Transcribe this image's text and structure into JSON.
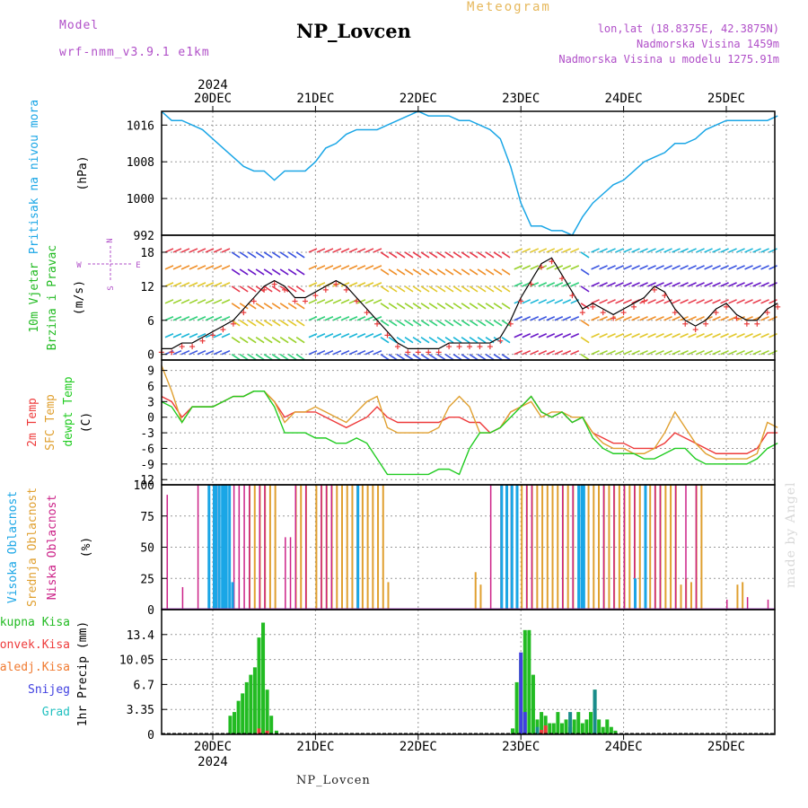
{
  "header": {
    "model_label": "Model",
    "model_name": "wrf-nmm_v3.9.1 e1km",
    "station": "NP_Lovcen",
    "meteogram_label": "Meteogram",
    "coords": "lon,lat (18.8375E, 42.3875N)",
    "elevation": "Nadmorska Visina 1459m",
    "model_elevation": "Nadmorska Visina u modelu 1275.91m"
  },
  "footer": {
    "station": "NP_Lovcen",
    "watermark": "made by Angel"
  },
  "colors": {
    "pressure": "#1aa6e6",
    "wind_label": "#22bb22",
    "temp2m": "#ee3b3b",
    "sfc_temp": "#e0a030",
    "dewpoint": "#22cc22",
    "high_cloud": "#1aa6e6",
    "mid_cloud": "#e0a030",
    "low_cloud": "#cc2288",
    "total_precip": "#22bb22",
    "convective": "#ee3b3b",
    "freezing": "#f07a30",
    "snow": "#4040e0",
    "hail": "#20c0c0",
    "direction_axis": "#b04fc8"
  },
  "chart_data": [
    {
      "type": "line",
      "panel": "pressure",
      "title": "",
      "ylabel": "Pritisak na nivou mora",
      "yunit": "(hPa)",
      "yticks": [
        992,
        1000,
        1008,
        1016
      ],
      "ylim": [
        992,
        1019
      ],
      "x_dates": [
        "20DEC",
        "21DEC",
        "22DEC",
        "23DEC",
        "24DEC",
        "25DEC"
      ],
      "year": "2024",
      "xlim_days": [
        -0.5,
        5.5
      ],
      "x_days": [
        -0.5,
        -0.4,
        -0.3,
        -0.2,
        -0.1,
        0.0,
        0.1,
        0.2,
        0.3,
        0.4,
        0.5,
        0.6,
        0.7,
        0.8,
        0.9,
        1.0,
        1.1,
        1.2,
        1.3,
        1.4,
        1.5,
        1.6,
        1.7,
        1.8,
        1.9,
        2.0,
        2.1,
        2.2,
        2.3,
        2.4,
        2.5,
        2.6,
        2.7,
        2.8,
        2.9,
        3.0,
        3.1,
        3.2,
        3.3,
        3.4,
        3.5,
        3.6,
        3.7,
        3.8,
        3.9,
        4.0,
        4.1,
        4.2,
        4.3,
        4.4,
        4.5,
        4.6,
        4.7,
        4.8,
        4.9,
        5.0,
        5.1,
        5.2,
        5.3,
        5.4,
        5.5
      ],
      "values": [
        1019,
        1017,
        1017,
        1016,
        1015,
        1013,
        1011,
        1009,
        1007,
        1006,
        1006,
        1004,
        1006,
        1006,
        1006,
        1008,
        1011,
        1012,
        1014,
        1015,
        1015,
        1015,
        1016,
        1017,
        1018,
        1019,
        1018,
        1018,
        1018,
        1017,
        1017,
        1016,
        1015,
        1013,
        1007,
        999,
        994,
        994,
        993,
        993,
        992,
        996,
        999,
        1001,
        1003,
        1004,
        1006,
        1008,
        1009,
        1010,
        1012,
        1012,
        1013,
        1015,
        1016,
        1017,
        1017,
        1017,
        1017,
        1017,
        1018
      ]
    },
    {
      "type": "line",
      "panel": "wind",
      "title": "",
      "ylabel": "10m Vjetar",
      "ylabel2": "Brzina i Pravac",
      "yunit": "(m/s)",
      "yticks": [
        0,
        6,
        12,
        18
      ],
      "ylim": [
        -1,
        21
      ],
      "direction_axis": [
        "N",
        "W",
        "E",
        "S"
      ],
      "series": [
        {
          "name": "",
          "x_days": [
            -0.5,
            -0.4,
            -0.3,
            -0.2,
            -0.1,
            0.0,
            0.1,
            0.2,
            0.3,
            0.4,
            0.5,
            0.6,
            0.7,
            0.8,
            0.9,
            1.0,
            1.1,
            1.2,
            1.3,
            1.4,
            1.5,
            1.6,
            1.7,
            1.8,
            1.9,
            2.0,
            2.1,
            2.2,
            2.3,
            2.4,
            2.5,
            2.6,
            2.7,
            2.8,
            2.9,
            3.0,
            3.1,
            3.2,
            3.3,
            3.4,
            3.5,
            3.6,
            3.7,
            3.8,
            3.9,
            4.0,
            4.1,
            4.2,
            4.3,
            4.4,
            4.5,
            4.6,
            4.7,
            4.8,
            4.9,
            5.0,
            5.1,
            5.2,
            5.3,
            5.4,
            5.5
          ],
          "values": [
            1,
            1,
            2,
            2,
            3,
            4,
            5,
            6,
            8,
            10,
            12,
            13,
            12,
            10,
            10,
            11,
            12,
            13,
            12,
            10,
            8,
            6,
            4,
            2,
            1,
            1,
            1,
            1,
            2,
            2,
            2,
            2,
            2,
            3,
            6,
            10,
            13,
            16,
            17,
            14,
            11,
            8,
            9,
            8,
            7,
            8,
            9,
            10,
            12,
            11,
            8,
            6,
            5,
            6,
            8,
            9,
            7,
            6,
            6,
            8,
            9
          ]
        }
      ]
    },
    {
      "type": "line",
      "panel": "temperature",
      "title": "",
      "ylabel": "2m Temp",
      "ylabel2": "SFC Temp",
      "ylabel3": "dewpt Temp",
      "yunit": "(C)",
      "yticks": [
        -12,
        -9,
        -6,
        -3,
        0,
        3,
        6,
        9
      ],
      "ylim": [
        -13,
        11
      ],
      "series": [
        {
          "name": "2m Temp",
          "x_days": [
            -0.5,
            -0.4,
            -0.3,
            -0.2,
            -0.1,
            0.0,
            0.1,
            0.2,
            0.3,
            0.4,
            0.5,
            0.6,
            0.7,
            0.8,
            0.9,
            1.0,
            1.1,
            1.2,
            1.3,
            1.4,
            1.5,
            1.6,
            1.7,
            1.8,
            1.9,
            2.0,
            2.1,
            2.2,
            2.3,
            2.4,
            2.5,
            2.6,
            2.7,
            2.8,
            2.9,
            3.0,
            3.1,
            3.2,
            3.3,
            3.4,
            3.5,
            3.6,
            3.7,
            3.8,
            3.9,
            4.0,
            4.1,
            4.2,
            4.3,
            4.4,
            4.5,
            4.6,
            4.7,
            4.8,
            4.9,
            5.0,
            5.1,
            5.2,
            5.3,
            5.4,
            5.5
          ],
          "values": [
            4,
            3,
            0,
            2,
            2,
            2,
            3,
            4,
            4,
            5,
            5,
            3,
            0,
            1,
            1,
            1,
            0,
            -1,
            -2,
            -1,
            0,
            2,
            0,
            -1,
            -1,
            -1,
            -1,
            -1,
            0,
            0,
            -1,
            -1,
            -3,
            -2,
            1,
            2,
            4,
            1,
            0,
            1,
            -1,
            0,
            -3,
            -4,
            -5,
            -5,
            -6,
            -6,
            -6,
            -5,
            -3,
            -4,
            -5,
            -6,
            -7,
            -7,
            -7,
            -7,
            -6,
            -3,
            -3
          ]
        },
        {
          "name": "SFC Temp",
          "x_days": [
            -0.5,
            -0.4,
            -0.3,
            -0.2,
            -0.1,
            0.0,
            0.1,
            0.2,
            0.3,
            0.4,
            0.5,
            0.6,
            0.7,
            0.8,
            0.9,
            1.0,
            1.1,
            1.2,
            1.3,
            1.4,
            1.5,
            1.6,
            1.7,
            1.8,
            1.9,
            2.0,
            2.1,
            2.2,
            2.3,
            2.4,
            2.5,
            2.6,
            2.7,
            2.8,
            2.9,
            3.0,
            3.1,
            3.2,
            3.3,
            3.4,
            3.5,
            3.6,
            3.7,
            3.8,
            3.9,
            4.0,
            4.1,
            4.2,
            4.3,
            4.4,
            4.5,
            4.6,
            4.7,
            4.8,
            4.9,
            5.0,
            5.1,
            5.2,
            5.3,
            5.4,
            5.5
          ],
          "values": [
            10,
            5,
            -1,
            2,
            2,
            2,
            3,
            4,
            4,
            5,
            5,
            3,
            -1,
            1,
            1,
            2,
            1,
            0,
            -1,
            1,
            3,
            4,
            -2,
            -3,
            -3,
            -3,
            -3,
            -2,
            2,
            4,
            2,
            -3,
            -3,
            -2,
            1,
            2,
            3,
            0,
            1,
            1,
            0,
            0,
            -3,
            -5,
            -6,
            -6,
            -7,
            -7,
            -6,
            -3,
            1,
            -2,
            -5,
            -7,
            -8,
            -8,
            -8,
            -8,
            -7,
            -1,
            -2
          ]
        },
        {
          "name": "dewpt Temp",
          "x_days": [
            -0.5,
            -0.4,
            -0.3,
            -0.2,
            -0.1,
            0.0,
            0.1,
            0.2,
            0.3,
            0.4,
            0.5,
            0.6,
            0.7,
            0.8,
            0.9,
            1.0,
            1.1,
            1.2,
            1.3,
            1.4,
            1.5,
            1.6,
            1.7,
            1.8,
            1.9,
            2.0,
            2.1,
            2.2,
            2.3,
            2.4,
            2.5,
            2.6,
            2.7,
            2.8,
            2.9,
            3.0,
            3.1,
            3.2,
            3.3,
            3.4,
            3.5,
            3.6,
            3.7,
            3.8,
            3.9,
            4.0,
            4.1,
            4.2,
            4.3,
            4.4,
            4.5,
            4.6,
            4.7,
            4.8,
            4.9,
            5.0,
            5.1,
            5.2,
            5.3,
            5.4,
            5.5
          ],
          "values": [
            3,
            2,
            -1,
            2,
            2,
            2,
            3,
            4,
            4,
            5,
            5,
            2,
            -3,
            -3,
            -3,
            -4,
            -4,
            -5,
            -5,
            -4,
            -5,
            -8,
            -11,
            -11,
            -11,
            -11,
            -11,
            -10,
            -10,
            -11,
            -6,
            -3,
            -3,
            -2,
            0,
            2,
            4,
            1,
            0,
            1,
            -1,
            0,
            -4,
            -6,
            -7,
            -7,
            -7,
            -8,
            -8,
            -7,
            -6,
            -6,
            -8,
            -9,
            -9,
            -9,
            -9,
            -9,
            -8,
            -6,
            -5
          ]
        }
      ]
    },
    {
      "type": "bar",
      "panel": "clouds",
      "title": "",
      "ylabel": "Visoka Oblacnost",
      "ylabel2": "Srednja Oblacnost",
      "ylabel3": "Niska Oblacnost",
      "yunit": "(%)",
      "yticks": [
        0,
        25,
        50,
        75,
        100
      ],
      "ylim": [
        0,
        100
      ],
      "series": [
        {
          "name": "Visoka Oblacnost",
          "x_days": [
            -0.05,
            0.0,
            0.02,
            0.05,
            0.08,
            0.1,
            0.12,
            0.15,
            0.18,
            1.4,
            2.8,
            2.85,
            2.9,
            2.95,
            3.55,
            3.58,
            3.6,
            4.1,
            4.2
          ],
          "values": [
            100,
            100,
            100,
            100,
            100,
            100,
            100,
            100,
            22,
            100,
            100,
            100,
            100,
            100,
            100,
            100,
            100,
            25,
            100
          ]
        },
        {
          "name": "Srednja Oblacnost",
          "x_days": [
            0.35,
            0.4,
            0.45,
            0.5,
            0.55,
            0.6,
            0.8,
            0.85,
            0.9,
            1.0,
            1.05,
            1.1,
            1.15,
            1.2,
            1.25,
            1.3,
            1.35,
            1.4,
            1.45,
            1.5,
            1.55,
            1.6,
            1.65,
            1.7,
            2.55,
            2.6,
            2.8,
            2.85,
            2.9,
            2.95,
            3.0,
            3.05,
            3.1,
            3.15,
            3.2,
            3.25,
            3.3,
            3.35,
            3.4,
            3.45,
            3.5,
            3.6,
            3.65,
            3.7,
            3.75,
            3.8,
            3.85,
            3.9,
            3.95,
            4.0,
            4.05,
            4.1,
            4.15,
            4.2,
            4.25,
            4.3,
            4.35,
            4.4,
            4.45,
            4.5,
            4.55,
            4.6,
            4.65,
            4.7,
            4.75,
            5.1,
            5.15
          ],
          "values": [
            100,
            100,
            100,
            100,
            100,
            100,
            100,
            100,
            100,
            100,
            100,
            100,
            100,
            100,
            100,
            100,
            100,
            100,
            100,
            100,
            100,
            100,
            100,
            22,
            30,
            20,
            100,
            100,
            100,
            100,
            100,
            100,
            100,
            100,
            100,
            100,
            100,
            100,
            100,
            100,
            100,
            100,
            100,
            100,
            100,
            100,
            100,
            100,
            100,
            100,
            100,
            100,
            100,
            100,
            100,
            100,
            100,
            100,
            100,
            100,
            20,
            25,
            22,
            100,
            100,
            20,
            22
          ]
        },
        {
          "name": "Niska Oblacnost",
          "x_days": [
            -0.45,
            -0.3,
            -0.15,
            0.0,
            0.05,
            0.12,
            0.2,
            0.25,
            0.3,
            0.35,
            0.45,
            0.5,
            0.7,
            0.75,
            0.8,
            0.9,
            1.05,
            1.1,
            1.15,
            2.7,
            2.8,
            2.9,
            3.05,
            3.1,
            3.4,
            3.5,
            3.8,
            3.9,
            4.0,
            4.1,
            4.3,
            4.35,
            4.5,
            4.6,
            4.7,
            5.0,
            5.2,
            5.4
          ],
          "values": [
            92,
            18,
            100,
            100,
            100,
            100,
            100,
            100,
            100,
            100,
            100,
            100,
            58,
            58,
            100,
            100,
            100,
            100,
            100,
            100,
            100,
            100,
            100,
            100,
            100,
            100,
            100,
            100,
            100,
            100,
            100,
            100,
            100,
            100,
            100,
            8,
            10,
            8
          ]
        }
      ]
    },
    {
      "type": "bar",
      "panel": "precipitation",
      "title": "",
      "ylabel": "1hr Precip",
      "yunit": "(mm)",
      "yticks": [
        0,
        3.35,
        6.7,
        10.05,
        13.4
      ],
      "ylim": [
        0,
        16.75
      ],
      "legend": [
        "Ukupna Kisa",
        "Konvek.Kisa",
        "Zaledj.Kisa",
        "Snijeg",
        "Grad"
      ],
      "series": [
        {
          "name": "Ukupna Kisa",
          "x_days": [
            0.17,
            0.21,
            0.25,
            0.29,
            0.33,
            0.37,
            0.41,
            0.45,
            0.49,
            0.53,
            0.57,
            0.62,
            2.92,
            2.96,
            3.0,
            3.04,
            3.08,
            3.12,
            3.16,
            3.2,
            3.24,
            3.28,
            3.32,
            3.36,
            3.4,
            3.44,
            3.48,
            3.52,
            3.56,
            3.6,
            3.64,
            3.68,
            3.72,
            3.76,
            3.8,
            3.84,
            3.88,
            3.92
          ],
          "values": [
            2.5,
            3,
            4.5,
            5.5,
            7,
            8,
            9,
            13,
            15,
            6,
            2.5,
            0.5,
            0.8,
            7,
            10,
            14,
            14,
            8,
            2,
            3,
            2.5,
            1.5,
            1.5,
            3,
            1.5,
            2,
            1,
            2,
            3,
            1.5,
            2,
            3,
            6,
            2,
            1,
            2,
            1,
            0.5
          ]
        },
        {
          "name": "Konvek.Kisa",
          "x_days": [
            0.45,
            0.53,
            3.2,
            3.24
          ],
          "values": [
            0.8,
            0.5,
            0.6,
            1.2
          ]
        },
        {
          "name": "Snijeg",
          "x_days": [
            3.0,
            3.04
          ],
          "values": [
            11,
            3
          ]
        },
        {
          "name": "Grad",
          "x_days": [
            3.16,
            3.48,
            3.72
          ],
          "values": [
            1,
            3,
            6
          ]
        }
      ]
    }
  ]
}
